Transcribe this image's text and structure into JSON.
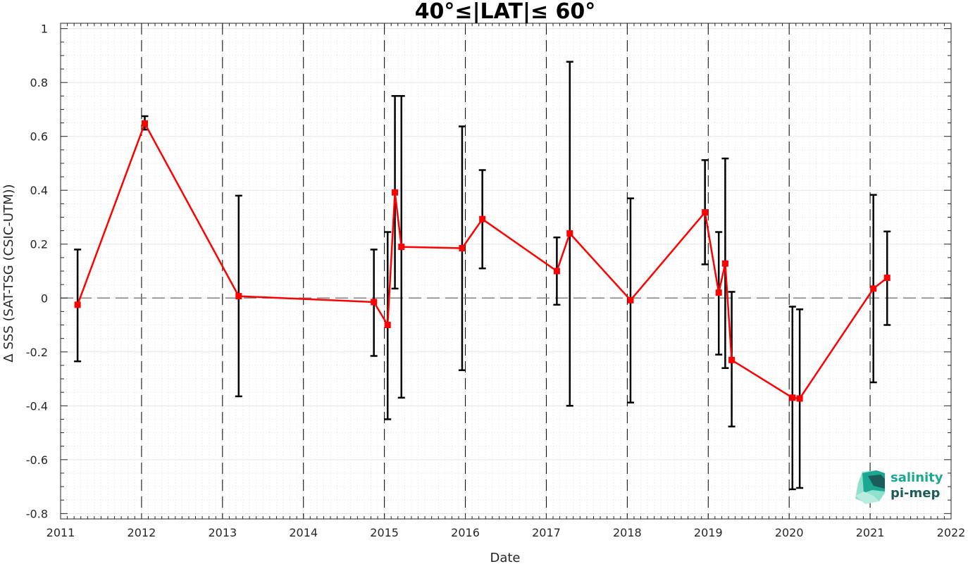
{
  "chart_data": {
    "type": "line",
    "title": "40°≤|LAT|≤ 60°",
    "xlabel": "Date",
    "ylabel": "Δ SSS (SAT-TSG (CSIC-UTM))",
    "xlim": [
      2011,
      2022
    ],
    "ylim": [
      -0.82,
      1.02
    ],
    "x_ticks": [
      "2011",
      "2012",
      "2013",
      "2014",
      "2015",
      "2016",
      "2017",
      "2018",
      "2019",
      "2020",
      "2021",
      "2022"
    ],
    "y_ticks": [
      "-0.8",
      "-0.6",
      "-0.4",
      "-0.2",
      "0",
      "0.2",
      "0.4",
      "0.6",
      "0.8",
      "1"
    ],
    "grid": true,
    "year_boundaries": [
      2012,
      2013,
      2014,
      2015,
      2016,
      2017,
      2018,
      2019,
      2020,
      2021
    ],
    "zero_line": 0,
    "series": [
      {
        "points": [
          {
            "x": 2011.21,
            "y": -0.025,
            "lo": -0.235,
            "hi": 0.18
          },
          {
            "x": 2012.04,
            "y": 0.648,
            "lo": 0.625,
            "hi": 0.675
          },
          {
            "x": 2013.2,
            "y": 0.007,
            "lo": -0.365,
            "hi": 0.38
          },
          {
            "x": 2014.87,
            "y": -0.015,
            "lo": -0.215,
            "hi": 0.18
          },
          {
            "x": 2015.04,
            "y": -0.1,
            "lo": -0.45,
            "hi": 0.245
          },
          {
            "x": 2015.13,
            "y": 0.392,
            "lo": 0.035,
            "hi": 0.75
          },
          {
            "x": 2015.21,
            "y": 0.19,
            "lo": -0.37,
            "hi": 0.75
          },
          {
            "x": 2015.96,
            "y": 0.185,
            "lo": -0.268,
            "hi": 0.637
          },
          {
            "x": 2016.21,
            "y": 0.293,
            "lo": 0.11,
            "hi": 0.475
          },
          {
            "x": 2017.13,
            "y": 0.1,
            "lo": -0.025,
            "hi": 0.225
          },
          {
            "x": 2017.29,
            "y": 0.24,
            "lo": -0.4,
            "hi": 0.877
          },
          {
            "x": 2018.04,
            "y": -0.008,
            "lo": -0.388,
            "hi": 0.37
          },
          {
            "x": 2018.96,
            "y": 0.318,
            "lo": 0.125,
            "hi": 0.512
          },
          {
            "x": 2019.13,
            "y": 0.02,
            "lo": -0.21,
            "hi": 0.245
          },
          {
            "x": 2019.21,
            "y": 0.128,
            "lo": -0.26,
            "hi": 0.518
          },
          {
            "x": 2019.29,
            "y": -0.23,
            "lo": -0.477,
            "hi": 0.023
          },
          {
            "x": 2020.04,
            "y": -0.37,
            "lo": -0.71,
            "hi": -0.032
          },
          {
            "x": 2020.13,
            "y": -0.373,
            "lo": -0.705,
            "hi": -0.042
          },
          {
            "x": 2021.04,
            "y": 0.035,
            "lo": -0.313,
            "hi": 0.383
          },
          {
            "x": 2021.21,
            "y": 0.075,
            "lo": -0.1,
            "hi": 0.247
          }
        ]
      }
    ],
    "colors": {
      "line": "#ff0000",
      "errorbar": "#000000",
      "zero_line": "#808080",
      "grid": "#e6e6e6",
      "axes": "#262626"
    }
  },
  "logo": {
    "line1": "salinity",
    "line2": "pi-mep",
    "colors": {
      "teal": "#1aa890",
      "dark": "#1d5d59",
      "light": "#8fe0cc"
    }
  }
}
